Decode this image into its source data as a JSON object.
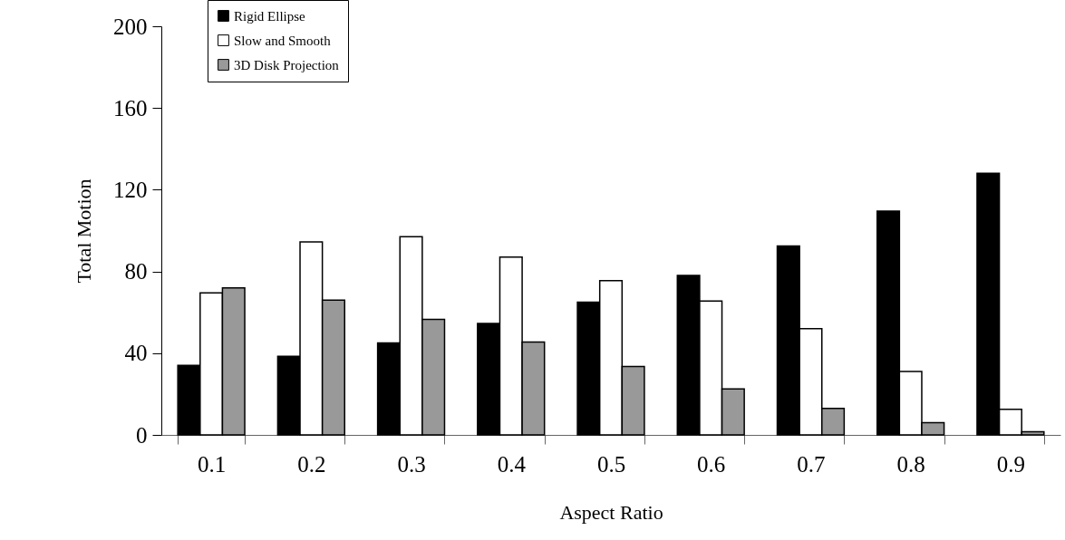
{
  "chart_data": {
    "type": "bar",
    "xlabel": "Aspect Ratio",
    "ylabel": "Total Motion",
    "categories": [
      "0.1",
      "0.2",
      "0.3",
      "0.4",
      "0.5",
      "0.6",
      "0.7",
      "0.8",
      "0.9"
    ],
    "series": [
      {
        "name": "Rigid Ellipse",
        "color": "#000000",
        "values": [
          34,
          38.5,
          45,
          54.5,
          65,
          78,
          92.5,
          109.5,
          128
        ]
      },
      {
        "name": "Slow and Smooth",
        "color": "#ffffff",
        "values": [
          69.5,
          94.5,
          97,
          87,
          75.5,
          65.5,
          52,
          31,
          12.5
        ]
      },
      {
        "name": "3D Disk Projection",
        "color": "#999999",
        "values": [
          72,
          66,
          56.5,
          45.5,
          33.5,
          22.5,
          13,
          6,
          1.5
        ]
      }
    ],
    "ylim": [
      0,
      200
    ],
    "yticks": [
      0,
      40,
      80,
      120,
      160,
      200
    ],
    "grid": false,
    "legend": "top left"
  }
}
